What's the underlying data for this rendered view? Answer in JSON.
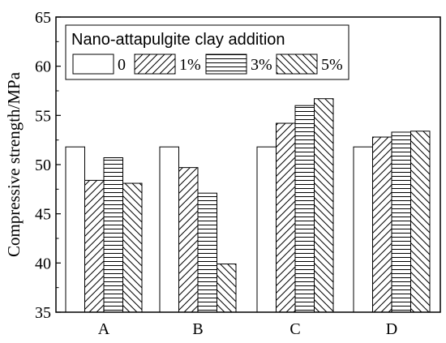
{
  "chart_data": {
    "type": "bar",
    "categories": [
      "A",
      "B",
      "C",
      "D"
    ],
    "series": [
      {
        "name": "0",
        "pattern": "none",
        "values": [
          51.8,
          51.8,
          51.8,
          51.8
        ]
      },
      {
        "name": "1%",
        "pattern": "diag-right",
        "values": [
          48.4,
          49.7,
          54.2,
          52.8
        ]
      },
      {
        "name": "3%",
        "pattern": "horizontal",
        "values": [
          50.7,
          47.1,
          56.0,
          53.3
        ]
      },
      {
        "name": "5%",
        "pattern": "diag-left",
        "values": [
          48.1,
          39.9,
          56.7,
          53.4
        ]
      }
    ],
    "ylabel": "Compressive strength/MPa",
    "xlabel": "",
    "ylim": [
      35,
      65
    ],
    "yticks": [
      35,
      40,
      45,
      50,
      55,
      60,
      65
    ],
    "legend": {
      "title": "Nano-attapulgite clay addition",
      "position": "top-left"
    },
    "grid": false,
    "colors": {
      "bar_fill": "#ffffff",
      "stroke": "#000000"
    }
  }
}
